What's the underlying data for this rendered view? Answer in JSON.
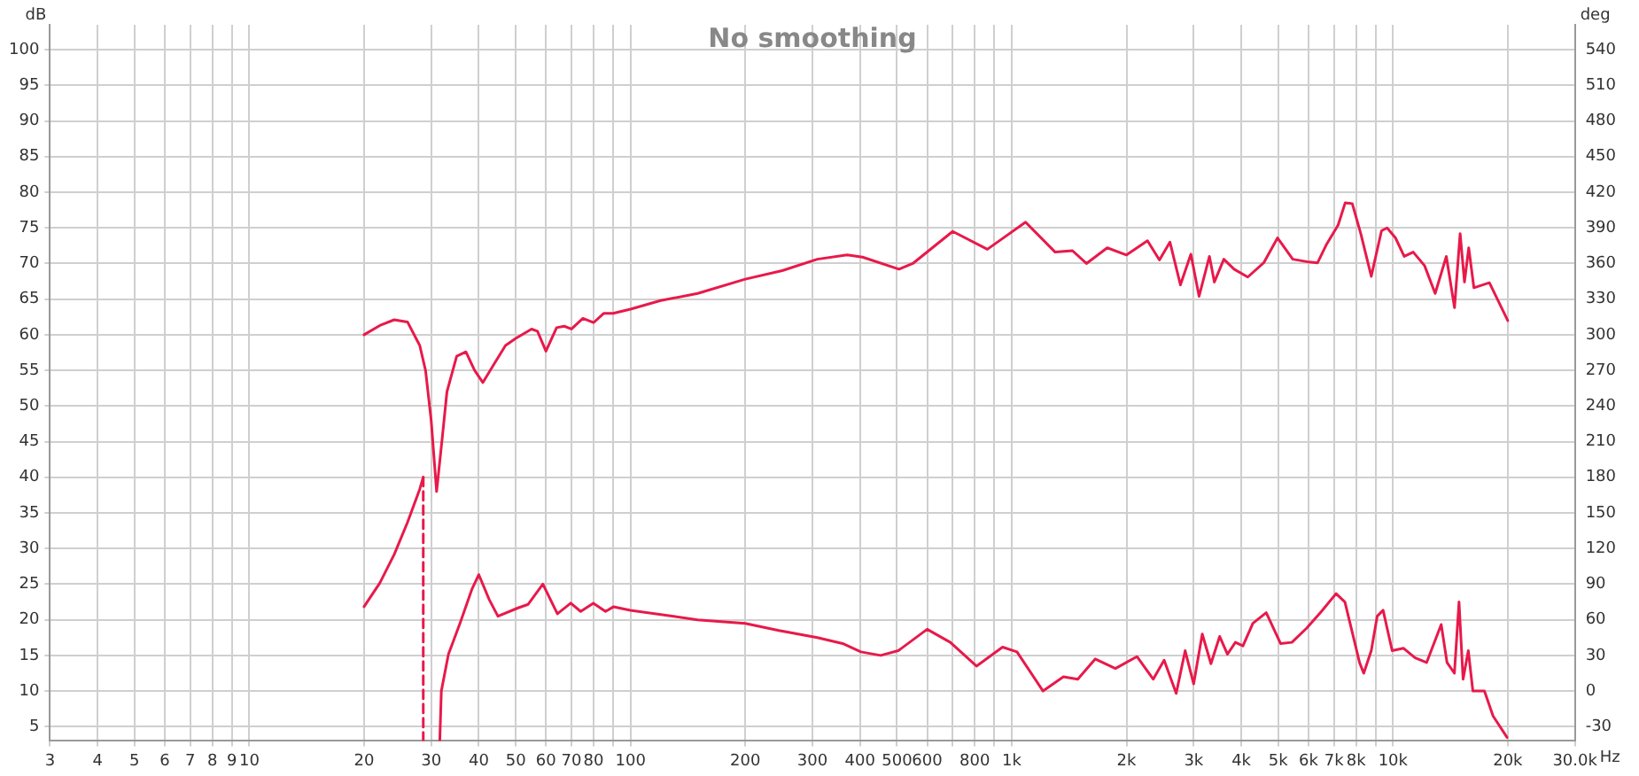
{
  "chart_data": {
    "type": "line",
    "title": "No smoothing",
    "xlabel": "Hz",
    "ylabel": "dB",
    "y2label": "deg",
    "log": "x",
    "grid": true,
    "legend": false,
    "xlim": [
      3,
      30000
    ],
    "xticks": [
      3,
      4,
      5,
      6,
      7,
      8,
      9,
      10,
      20,
      30,
      40,
      50,
      60,
      70,
      80,
      {
        "value": 90,
        "label": null
      },
      100,
      200,
      300,
      400,
      500,
      600,
      {
        "value": 700,
        "label": null
      },
      800,
      {
        "value": 900,
        "label": null
      },
      {
        "value": 1000,
        "label": "1k"
      },
      {
        "value": 2000,
        "label": "2k"
      },
      {
        "value": 3000,
        "label": "3k"
      },
      {
        "value": 4000,
        "label": "4k"
      },
      {
        "value": 5000,
        "label": "5k"
      },
      {
        "value": 6000,
        "label": "6k"
      },
      {
        "value": 7000,
        "label": "7k"
      },
      {
        "value": 8000,
        "label": "8k"
      },
      {
        "value": 9000,
        "label": null
      },
      {
        "value": 10000,
        "label": "10k"
      },
      {
        "value": 20000,
        "label": "20k"
      },
      {
        "value": 30000,
        "label": "30.0k"
      }
    ],
    "ylim": [
      3,
      103.5
    ],
    "yticks": [
      5,
      10,
      15,
      20,
      25,
      30,
      35,
      40,
      45,
      50,
      55,
      60,
      65,
      70,
      75,
      80,
      85,
      90,
      95,
      100
    ],
    "y2lim": [
      -42,
      561
    ],
    "y2ticks": [
      -30,
      0,
      30,
      60,
      90,
      120,
      150,
      180,
      210,
      240,
      270,
      300,
      330,
      360,
      390,
      420,
      450,
      480,
      510,
      540
    ],
    "series": [
      {
        "color": "#e8194a",
        "axis": "y",
        "x": [
          20,
          22,
          24,
          26,
          28,
          29,
          30,
          31,
          32,
          33,
          35,
          37,
          39,
          41,
          44,
          47,
          50,
          55,
          57,
          60,
          64,
          67,
          70,
          75,
          80,
          85,
          90,
          100,
          120,
          150,
          200,
          250,
          309,
          370,
          406,
          506,
          550,
          700,
          863,
          1087,
          1300,
          1443,
          1570,
          1780,
          2000,
          2270,
          2440,
          2600,
          2770,
          2950,
          3100,
          3300,
          3400,
          3600,
          3830,
          4160,
          4580,
          4980,
          5460,
          6030,
          6340,
          6680,
          7180,
          7490,
          7820,
          8230,
          8770,
          9330,
          9650,
          10150,
          10700,
          11300,
          12100,
          12900,
          13800,
          14500,
          15000,
          15400,
          15800,
          16300,
          17900,
          20000
        ],
        "values": [
          60,
          61.3,
          62.1,
          61.8,
          58.5,
          55,
          48,
          38,
          45,
          52,
          57,
          57.6,
          55,
          53.3,
          56,
          58.5,
          59.5,
          60.8,
          60.5,
          57.7,
          61,
          61.2,
          60.8,
          62.3,
          61.7,
          63,
          63,
          63.6,
          64.8,
          65.8,
          67.8,
          69,
          70.6,
          71.2,
          70.9,
          69.2,
          70,
          74.5,
          72,
          75.8,
          71.6,
          71.8,
          70,
          72.2,
          71.2,
          73.2,
          70.5,
          73,
          67,
          71.3,
          65.4,
          71,
          67.4,
          70.6,
          69.2,
          68.1,
          70.1,
          73.6,
          70.6,
          70.2,
          70.1,
          72.6,
          75.4,
          78.5,
          78.4,
          74.2,
          68.2,
          74.6,
          75,
          73.6,
          71,
          71.6,
          69.7,
          65.8,
          71,
          63.8,
          74.2,
          67.4,
          72.2,
          66.6,
          67.3,
          62
        ]
      },
      {
        "color": "#e8194a",
        "axis": "y2",
        "x": [
          20,
          22,
          24,
          26,
          28,
          28.6,
          30,
          31.6,
          31.9,
          33.3,
          35.8,
          38.4,
          40,
          42.6,
          44.9,
          50.7,
          53.9,
          58.9,
          64.3,
          69.7,
          74,
          79.9,
          86,
          90.3,
          100,
          150,
          200,
          245,
          309,
          360,
          402,
          453,
          504,
          600,
          690,
          808,
          946,
          1032,
          1208,
          1366,
          1490,
          1655,
          1870,
          2130,
          2350,
          2510,
          2700,
          2850,
          3000,
          3160,
          3330,
          3510,
          3680,
          3860,
          4040,
          4290,
          4650,
          5070,
          5430,
          5940,
          6490,
          7090,
          7480,
          8170,
          8380,
          8770,
          9090,
          9420,
          9950,
          10660,
          11430,
          12250,
          13380,
          13860,
          14490,
          14900,
          15270,
          15760,
          16200,
          17370,
          18300,
          19910
        ],
        "values": [
          71,
          91,
          115,
          142,
          170,
          180,
          null,
          -42,
          0,
          31,
          58,
          86,
          98,
          77,
          63,
          70,
          73,
          90,
          65,
          74,
          67,
          74,
          67,
          71,
          68,
          60,
          57,
          51,
          45,
          40,
          33,
          30,
          34,
          52,
          41,
          21,
          37,
          33,
          0,
          12,
          10,
          27,
          19,
          29,
          10,
          26,
          -2,
          34,
          6,
          48,
          23,
          46,
          31,
          41,
          38,
          57,
          66,
          40,
          41,
          53,
          67,
          82,
          75,
          24,
          15,
          34,
          63,
          68,
          34,
          36,
          28,
          24,
          56,
          24,
          15,
          75,
          10,
          34,
          0,
          0,
          -21,
          -39
        ]
      },
      {
        "color": "#e8194a",
        "axis": "y2",
        "line_style": "dashed",
        "x": [
          28.6,
          28.6
        ],
        "values": [
          180,
          -42
        ]
      }
    ]
  }
}
